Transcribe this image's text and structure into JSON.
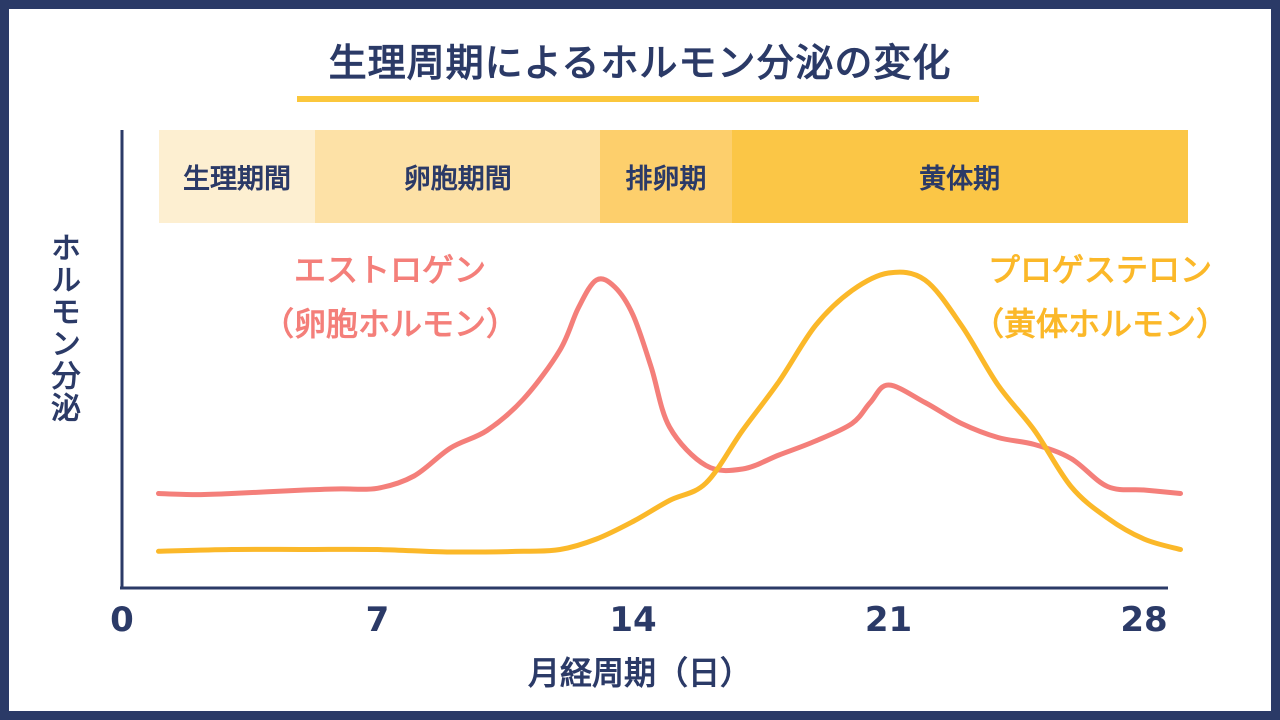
{
  "colors": {
    "frame": "#2b3a67",
    "text": "#2b3a67",
    "estrogen": "#f47f7a",
    "progesterone": "#fbb829",
    "accent": "#fbc73c"
  },
  "chart_data": {
    "type": "line",
    "title": "生理周期によるホルモン分泌の変化",
    "xlabel": "月経周期（日）",
    "ylabel": "ホルモン分泌",
    "xlim": [
      0,
      28
    ],
    "ylim": [
      0,
      100
    ],
    "xticks": [
      "0",
      "7",
      "14",
      "21",
      "28"
    ],
    "phases": [
      {
        "label": "生理期間",
        "start": 1,
        "end": 5.3,
        "color": "#fdefd1"
      },
      {
        "label": "卵胞期間",
        "start": 5.3,
        "end": 13.1,
        "color": "#fde1a6"
      },
      {
        "label": "排卵期",
        "start": 13.1,
        "end": 16.7,
        "color": "#fdcf6c"
      },
      {
        "label": "黄体期",
        "start": 16.7,
        "end": 29.2,
        "color": "#fbc646"
      }
    ],
    "series": [
      {
        "name_lines": [
          "エストロゲン",
          "（卵胞ホルモン）"
        ],
        "color": "#f47f7a",
        "x": [
          1,
          2,
          3,
          4,
          5,
          6,
          7,
          8,
          9,
          10,
          11,
          12,
          12.5,
          13,
          13.5,
          14,
          14.5,
          15,
          16,
          17,
          18,
          19,
          20,
          20.5,
          21,
          22,
          23,
          24,
          25,
          26,
          27,
          28,
          29
        ],
        "y": [
          19,
          18.7,
          19,
          19.5,
          20,
          20.3,
          20.5,
          24,
          32,
          37,
          46,
          60,
          72,
          80,
          78,
          70,
          55,
          38,
          27,
          26,
          30,
          34,
          39,
          45,
          50,
          45,
          39,
          35,
          33,
          29,
          21,
          20,
          19
        ]
      },
      {
        "name_lines": [
          "プロゲステロン",
          "（黄体ホルモン）"
        ],
        "color": "#fbb829",
        "x": [
          1,
          3,
          5,
          7,
          9,
          11,
          12,
          13,
          14,
          15,
          16,
          17,
          18,
          19,
          20,
          21,
          22,
          23,
          24,
          25,
          26,
          27,
          28,
          29
        ],
        "y": [
          2.5,
          3,
          3,
          3,
          2.3,
          2.5,
          3,
          6,
          11,
          17,
          22,
          37,
          51,
          67,
          77,
          82,
          80,
          67,
          50,
          37,
          21,
          12,
          6,
          3
        ]
      }
    ]
  }
}
